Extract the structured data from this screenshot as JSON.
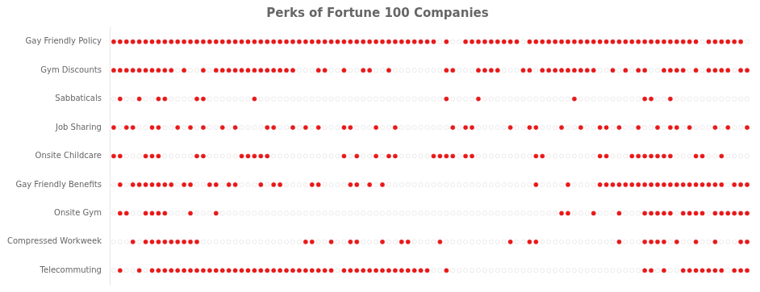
{
  "chart_data": {
    "type": "dots",
    "title": "Perks of Fortune 100 Companies",
    "categories": [
      "Gay Friendly Policy",
      "Gym Discounts",
      "Sabbaticals",
      "Job Sharing",
      "Onsite Childcare",
      "Gay Friendly Benefits",
      "Onsite Gym",
      "Compressed Workweek",
      "Telecommuting"
    ],
    "values": [
      [
        1,
        1,
        1,
        1,
        1,
        1,
        1,
        1,
        1,
        1,
        1,
        1,
        1,
        1,
        1,
        1,
        1,
        1,
        1,
        1,
        1,
        1,
        1,
        1,
        1,
        1,
        1,
        1,
        1,
        1,
        1,
        1,
        1,
        1,
        1,
        1,
        1,
        1,
        1,
        1,
        1,
        1,
        1,
        1,
        1,
        1,
        1,
        1,
        1,
        1,
        1,
        0,
        1,
        0,
        0,
        1,
        1,
        1,
        1,
        1,
        1,
        1,
        1,
        1,
        0,
        1,
        1,
        1,
        1,
        1,
        1,
        1,
        1,
        1,
        1,
        1,
        1,
        1,
        1,
        1,
        1,
        1,
        1,
        1,
        1,
        1,
        1,
        1,
        1,
        1,
        1,
        1,
        0,
        1,
        1,
        1,
        1,
        1,
        1,
        0
      ],
      [
        1,
        1,
        1,
        1,
        1,
        1,
        1,
        1,
        1,
        1,
        0,
        1,
        0,
        0,
        1,
        0,
        1,
        1,
        1,
        1,
        1,
        1,
        1,
        1,
        1,
        1,
        1,
        1,
        1,
        0,
        0,
        0,
        1,
        1,
        0,
        0,
        1,
        0,
        0,
        1,
        1,
        0,
        0,
        1,
        0,
        0,
        0,
        0,
        0,
        0,
        0,
        0,
        1,
        1,
        0,
        0,
        0,
        1,
        1,
        1,
        1,
        0,
        0,
        0,
        1,
        1,
        0,
        1,
        1,
        1,
        1,
        1,
        1,
        1,
        1,
        1,
        0,
        0,
        1,
        0,
        1,
        0,
        1,
        1,
        0,
        0,
        1,
        1,
        1,
        1,
        0,
        1,
        0,
        1,
        1,
        1,
        1,
        0,
        1,
        1
      ],
      [
        0,
        1,
        0,
        0,
        1,
        0,
        0,
        1,
        1,
        0,
        0,
        0,
        0,
        1,
        1,
        0,
        0,
        0,
        0,
        0,
        0,
        0,
        1,
        0,
        0,
        0,
        0,
        0,
        0,
        0,
        0,
        0,
        0,
        0,
        0,
        0,
        0,
        0,
        0,
        0,
        0,
        0,
        0,
        0,
        0,
        0,
        0,
        0,
        0,
        0,
        0,
        0,
        1,
        0,
        0,
        0,
        0,
        1,
        0,
        0,
        0,
        0,
        0,
        0,
        0,
        0,
        0,
        0,
        0,
        0,
        0,
        0,
        1,
        0,
        0,
        0,
        0,
        0,
        0,
        0,
        0,
        0,
        0,
        1,
        1,
        0,
        0,
        1,
        0,
        0,
        0,
        0,
        0,
        0,
        0,
        0,
        0,
        0,
        0,
        0
      ],
      [
        1,
        0,
        1,
        1,
        0,
        0,
        1,
        1,
        0,
        0,
        1,
        0,
        1,
        0,
        1,
        0,
        0,
        1,
        0,
        1,
        0,
        0,
        0,
        0,
        1,
        1,
        0,
        0,
        1,
        0,
        1,
        0,
        1,
        0,
        0,
        0,
        1,
        1,
        0,
        0,
        0,
        1,
        0,
        0,
        1,
        0,
        0,
        0,
        0,
        0,
        0,
        0,
        0,
        1,
        0,
        1,
        1,
        0,
        0,
        0,
        0,
        0,
        1,
        0,
        0,
        1,
        1,
        0,
        0,
        0,
        1,
        0,
        0,
        1,
        0,
        0,
        1,
        1,
        0,
        1,
        0,
        0,
        1,
        0,
        0,
        1,
        0,
        1,
        1,
        0,
        1,
        0,
        0,
        0,
        1,
        0,
        1,
        0,
        0,
        1
      ],
      [
        1,
        1,
        0,
        0,
        0,
        1,
        1,
        1,
        0,
        0,
        0,
        0,
        0,
        1,
        1,
        0,
        0,
        0,
        0,
        0,
        1,
        1,
        1,
        1,
        1,
        0,
        0,
        0,
        0,
        0,
        0,
        0,
        0,
        0,
        0,
        0,
        1,
        0,
        1,
        0,
        0,
        1,
        0,
        1,
        1,
        0,
        0,
        0,
        0,
        0,
        1,
        1,
        1,
        1,
        0,
        1,
        1,
        0,
        0,
        0,
        0,
        0,
        0,
        0,
        0,
        0,
        1,
        1,
        0,
        0,
        0,
        0,
        0,
        0,
        0,
        0,
        1,
        1,
        0,
        0,
        0,
        1,
        1,
        1,
        1,
        1,
        1,
        1,
        0,
        0,
        0,
        1,
        1,
        0,
        0,
        1,
        0,
        0,
        0,
        0
      ],
      [
        0,
        1,
        0,
        1,
        1,
        1,
        1,
        1,
        1,
        1,
        0,
        1,
        1,
        0,
        0,
        1,
        1,
        0,
        1,
        1,
        0,
        0,
        0,
        1,
        0,
        1,
        1,
        0,
        0,
        0,
        0,
        1,
        1,
        0,
        0,
        0,
        0,
        1,
        1,
        0,
        1,
        0,
        1,
        0,
        0,
        0,
        0,
        0,
        0,
        0,
        0,
        0,
        0,
        0,
        0,
        0,
        0,
        0,
        0,
        0,
        0,
        0,
        0,
        0,
        0,
        0,
        1,
        0,
        0,
        0,
        0,
        1,
        0,
        0,
        0,
        0,
        1,
        1,
        1,
        1,
        1,
        1,
        1,
        1,
        1,
        1,
        1,
        1,
        1,
        1,
        1,
        1,
        1,
        1,
        1,
        1,
        0,
        1,
        1,
        1
      ],
      [
        0,
        1,
        1,
        0,
        0,
        1,
        1,
        1,
        1,
        0,
        0,
        0,
        1,
        0,
        0,
        0,
        1,
        0,
        0,
        0,
        0,
        0,
        0,
        0,
        0,
        0,
        0,
        0,
        0,
        0,
        0,
        0,
        0,
        0,
        0,
        0,
        0,
        0,
        0,
        0,
        0,
        0,
        0,
        0,
        0,
        0,
        0,
        0,
        0,
        0,
        0,
        0,
        0,
        0,
        0,
        0,
        0,
        0,
        0,
        0,
        0,
        0,
        0,
        0,
        0,
        0,
        0,
        0,
        0,
        0,
        1,
        1,
        0,
        0,
        0,
        1,
        0,
        0,
        0,
        1,
        0,
        0,
        0,
        1,
        1,
        1,
        1,
        1,
        0,
        1,
        1,
        1,
        1,
        0,
        1,
        1,
        1,
        1,
        1,
        1
      ],
      [
        0,
        0,
        0,
        1,
        0,
        1,
        1,
        1,
        1,
        1,
        1,
        1,
        1,
        1,
        0,
        0,
        0,
        0,
        0,
        0,
        0,
        0,
        0,
        0,
        0,
        0,
        0,
        0,
        0,
        0,
        1,
        1,
        0,
        0,
        1,
        0,
        0,
        1,
        1,
        0,
        0,
        0,
        1,
        0,
        0,
        1,
        1,
        0,
        0,
        0,
        0,
        1,
        0,
        0,
        0,
        0,
        0,
        0,
        0,
        0,
        0,
        0,
        1,
        0,
        0,
        1,
        1,
        0,
        0,
        0,
        0,
        0,
        0,
        0,
        0,
        0,
        0,
        0,
        0,
        1,
        0,
        0,
        0,
        1,
        1,
        1,
        1,
        0,
        1,
        0,
        0,
        1,
        0,
        0,
        1,
        0,
        0,
        0,
        1,
        1
      ],
      [
        0,
        1,
        0,
        0,
        1,
        0,
        1,
        1,
        1,
        1,
        1,
        1,
        1,
        1,
        1,
        1,
        1,
        1,
        1,
        1,
        1,
        1,
        1,
        1,
        1,
        1,
        1,
        1,
        1,
        1,
        1,
        1,
        1,
        1,
        1,
        0,
        1,
        1,
        1,
        1,
        1,
        1,
        1,
        1,
        1,
        1,
        1,
        1,
        1,
        1,
        0,
        0,
        1,
        0,
        0,
        0,
        0,
        0,
        0,
        0,
        0,
        0,
        0,
        0,
        0,
        0,
        0,
        0,
        0,
        0,
        0,
        0,
        0,
        0,
        0,
        0,
        0,
        0,
        0,
        0,
        0,
        0,
        0,
        1,
        1,
        0,
        1,
        0,
        0,
        1,
        1,
        1,
        1,
        1,
        1,
        1,
        0,
        1,
        1,
        1
      ]
    ],
    "color": "#e8191a",
    "xlim": [
      -0.5,
      99.5
    ],
    "grid": false,
    "tick_labels": "y"
  }
}
